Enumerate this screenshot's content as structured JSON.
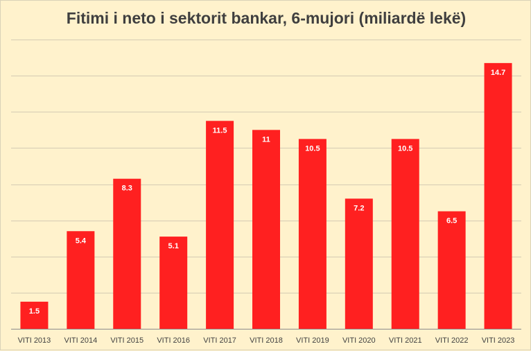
{
  "chart_data": {
    "type": "bar",
    "title": "Fitimi i neto i sektorit bankar, 6-mujori (miliardë lekë)",
    "categories": [
      "VITI 2013",
      "VITI 2014",
      "VITI 2015",
      "VITI 2016",
      "VITI 2017",
      "VITI 2018",
      "VITI 2019",
      "VITI 2020",
      "VITI 2021",
      "VITI 2022",
      "VITI 2023"
    ],
    "values": [
      1.5,
      5.4,
      8.3,
      5.1,
      11.5,
      11,
      10.5,
      7.2,
      10.5,
      6.5,
      14.7
    ],
    "value_labels": [
      "1.5",
      "5.4",
      "8.3",
      "5.1",
      "11.5",
      "11",
      "10.5",
      "7.2",
      "10.5",
      "6.5",
      "14.7"
    ],
    "xlabel": "",
    "ylabel": "",
    "ylim": [
      0,
      16
    ],
    "grid": true,
    "legend": "none",
    "colors": {
      "bar": "#ff2020",
      "background": "#fff2cc",
      "gridline": "#d4cbb3",
      "title": "#3f3f3f"
    }
  }
}
